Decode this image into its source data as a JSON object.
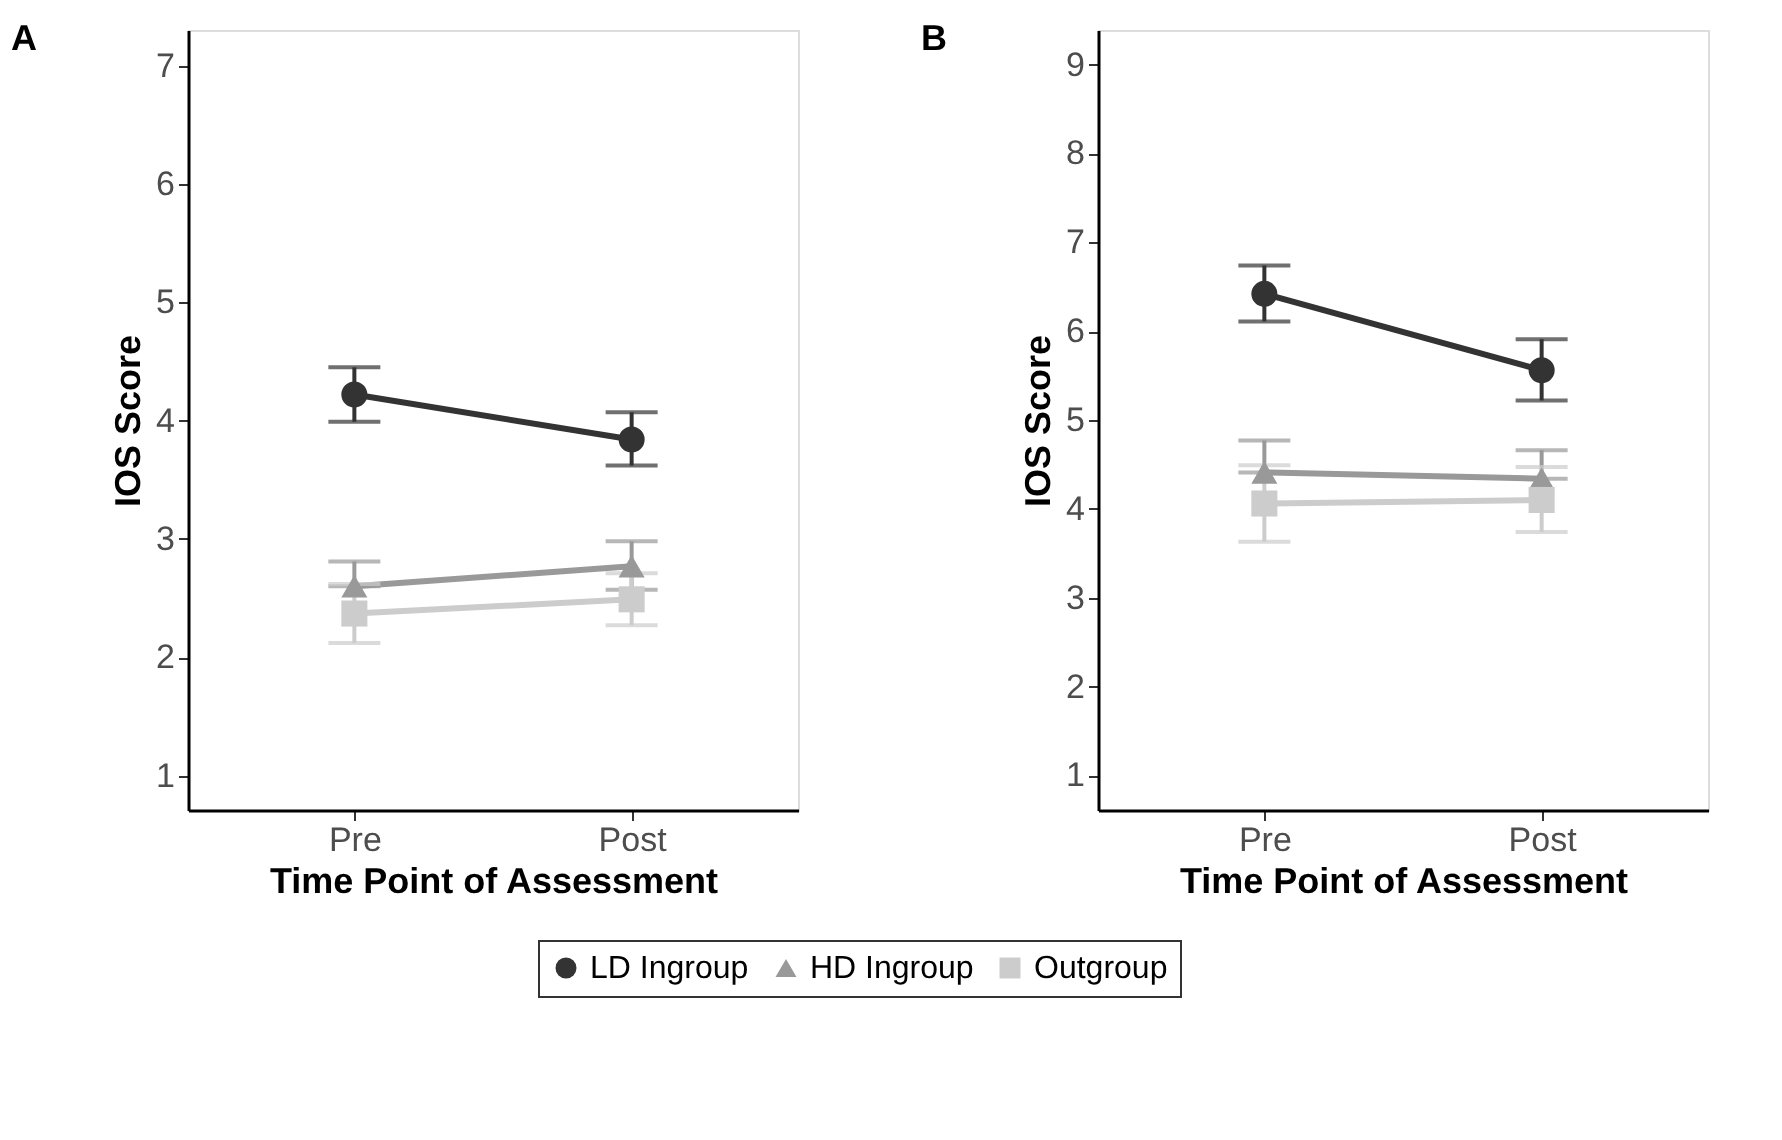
{
  "chart_data": [
    {
      "type": "line",
      "title": "A",
      "xlabel": "Time Point of Assessment",
      "ylabel": "IOS Score",
      "categories": [
        "Pre",
        "Post"
      ],
      "ylim": [
        0.71,
        7.3
      ],
      "yticks": [
        1,
        2,
        3,
        4,
        5,
        6,
        7
      ],
      "grid": false,
      "legend": "bottom",
      "series": [
        {
          "name": "LD Ingroup",
          "color": "#333333",
          "marker": "circle",
          "values": [
            4.22,
            3.84
          ],
          "errors": [
            [
              3.99,
              4.45
            ],
            [
              3.62,
              4.07
            ]
          ]
        },
        {
          "name": "HD Ingroup",
          "color": "#999999",
          "marker": "triangle",
          "values": [
            2.6,
            2.77
          ],
          "errors": [
            [
              2.6,
              2.81
            ],
            [
              2.57,
              2.98
            ]
          ]
        },
        {
          "name": "Outgroup",
          "color": "#cccccc",
          "marker": "square",
          "values": [
            2.37,
            2.49
          ],
          "errors": [
            [
              2.12,
              2.62
            ],
            [
              2.27,
              2.71
            ]
          ]
        }
      ]
    },
    {
      "type": "line",
      "title": "B",
      "xlabel": "Time Point of Assessment",
      "ylabel": "IOS Score",
      "categories": [
        "Pre",
        "Post"
      ],
      "ylim": [
        0.61,
        9.39
      ],
      "yticks": [
        1,
        2,
        3,
        4,
        5,
        6,
        7,
        8,
        9
      ],
      "grid": false,
      "legend": "bottom",
      "series": [
        {
          "name": "LD Ingroup",
          "color": "#333333",
          "marker": "circle",
          "values": [
            6.42,
            5.56
          ],
          "errors": [
            [
              6.11,
              6.74
            ],
            [
              5.22,
              5.91
            ]
          ]
        },
        {
          "name": "HD Ingroup",
          "color": "#999999",
          "marker": "triangle",
          "values": [
            4.41,
            4.34
          ],
          "errors": [
            [
              4.41,
              4.77
            ],
            [
              4.34,
              4.66
            ]
          ]
        },
        {
          "name": "Outgroup",
          "color": "#cccccc",
          "marker": "square",
          "values": [
            4.06,
            4.1
          ],
          "errors": [
            [
              3.63,
              4.49
            ],
            [
              3.74,
              4.47
            ]
          ]
        }
      ]
    }
  ]
}
